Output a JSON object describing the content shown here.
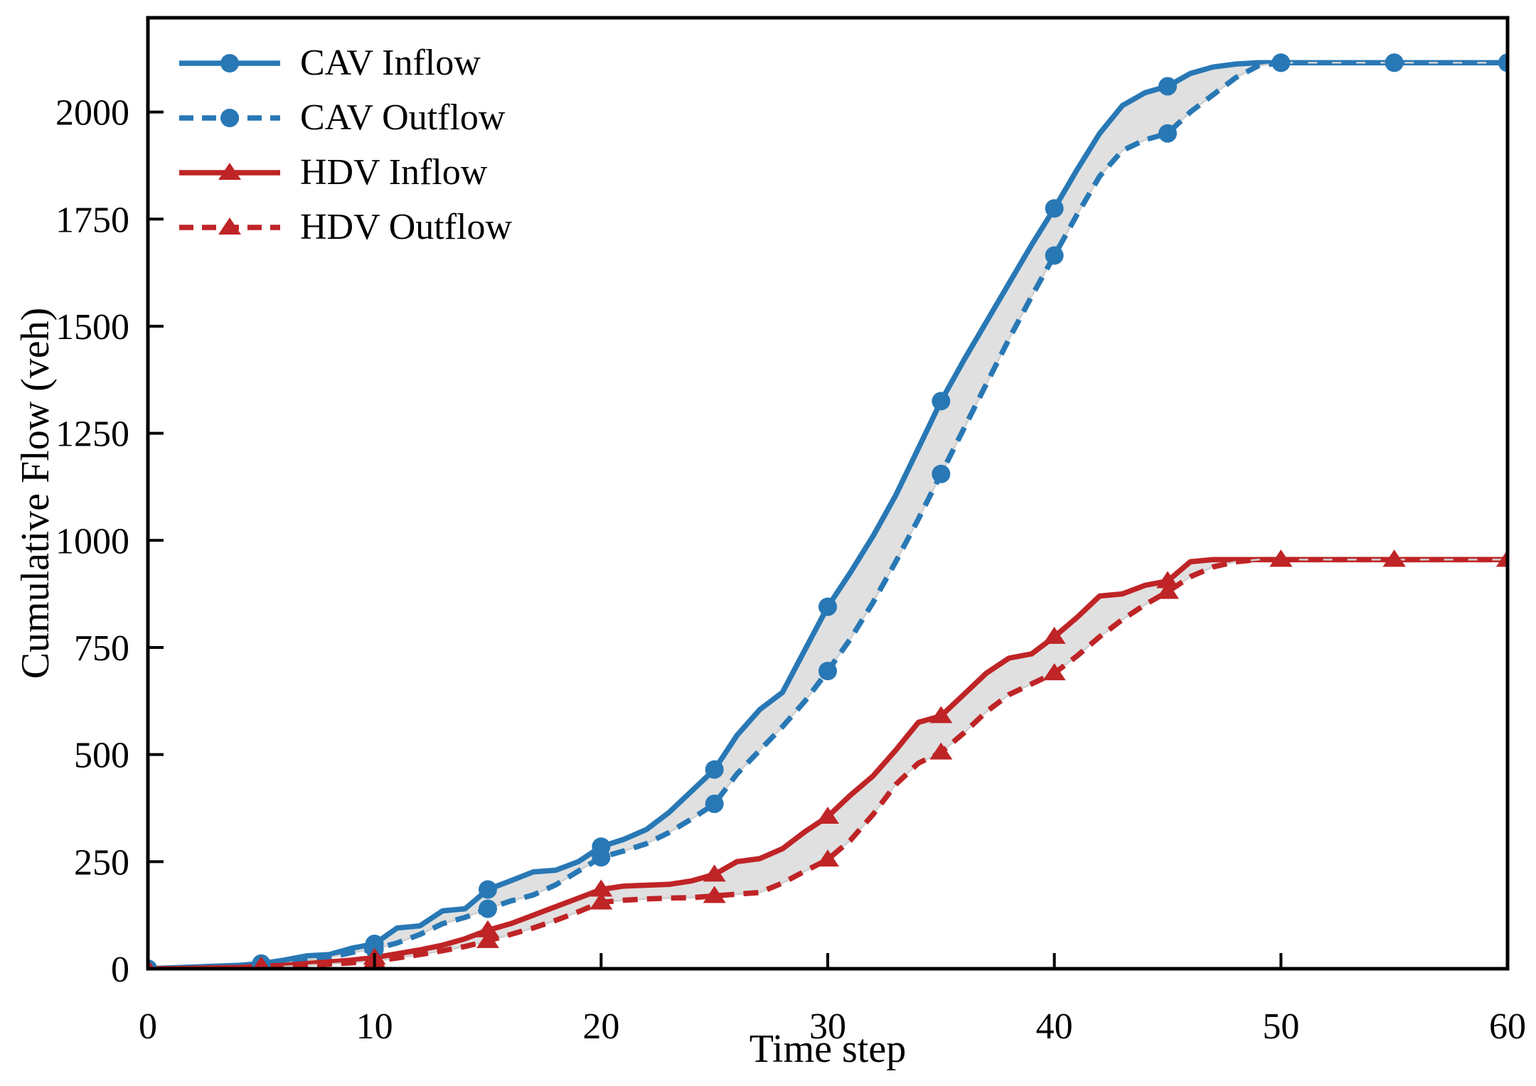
{
  "chart_data": {
    "type": "line",
    "title": "",
    "xlabel": "Time step",
    "ylabel": "Cumulative Flow (veh)",
    "x_range": [
      0,
      60
    ],
    "y_range": [
      0,
      2220
    ],
    "x_ticks": [
      0,
      10,
      20,
      30,
      40,
      50,
      60
    ],
    "y_ticks": [
      0,
      250,
      500,
      750,
      1000,
      1250,
      1500,
      1750,
      2000
    ],
    "grid": false,
    "legend_position": "upper-left",
    "band_color": "#e0e0e0",
    "band_edge_color": "#cfcfcf",
    "axis_color": "#000000",
    "marker_every": 5,
    "x_step": 1,
    "bands": [
      [
        0,
        1
      ],
      [
        2,
        3
      ]
    ],
    "series": [
      {
        "name": "CAV Inflow",
        "color": "#2878b5",
        "style": "solid",
        "marker": "circle",
        "values": [
          0,
          2,
          4,
          6,
          8,
          12,
          20,
          30,
          33,
          48,
          58,
          95,
          100,
          135,
          140,
          185,
          205,
          226,
          230,
          250,
          285,
          302,
          325,
          365,
          415,
          465,
          545,
          605,
          645,
          745,
          845,
          925,
          1010,
          1105,
          1215,
          1325,
          1420,
          1510,
          1600,
          1690,
          1775,
          1865,
          1950,
          2015,
          2045,
          2060,
          2090,
          2105,
          2112,
          2115,
          2115,
          2115,
          2115,
          2115,
          2115,
          2115,
          2115,
          2115,
          2115,
          2115,
          2115
        ]
      },
      {
        "name": "CAV Outflow",
        "color": "#2878b5",
        "style": "dashed",
        "marker": "circle",
        "values": [
          0,
          1,
          2,
          4,
          6,
          8,
          12,
          20,
          26,
          38,
          46,
          60,
          80,
          105,
          120,
          140,
          158,
          172,
          196,
          228,
          260,
          275,
          292,
          318,
          350,
          385,
          455,
          510,
          565,
          625,
          695,
          770,
          855,
          950,
          1050,
          1155,
          1260,
          1365,
          1470,
          1570,
          1665,
          1760,
          1850,
          1910,
          1935,
          1950,
          2000,
          2040,
          2080,
          2108,
          2115,
          2115,
          2115,
          2115,
          2115,
          2115,
          2115,
          2115,
          2115,
          2115,
          2115
        ]
      },
      {
        "name": "HDV Inflow",
        "color": "#bf2426",
        "style": "solid",
        "marker": "triangle",
        "values": [
          0,
          0,
          1,
          2,
          3,
          6,
          8,
          12,
          16,
          20,
          26,
          35,
          44,
          55,
          70,
          90,
          105,
          125,
          145,
          165,
          185,
          193,
          195,
          197,
          205,
          220,
          250,
          257,
          280,
          320,
          355,
          405,
          450,
          510,
          575,
          590,
          640,
          690,
          725,
          735,
          775,
          820,
          870,
          875,
          895,
          905,
          950,
          955,
          955,
          955,
          955,
          955,
          955,
          955,
          955,
          955,
          955,
          955,
          955,
          955,
          955
        ]
      },
      {
        "name": "HDV Outflow",
        "color": "#bf2426",
        "style": "dashed",
        "marker": "triangle",
        "values": [
          0,
          0,
          0,
          1,
          1,
          2,
          5,
          8,
          11,
          14,
          18,
          25,
          33,
          42,
          52,
          65,
          80,
          95,
          113,
          133,
          155,
          160,
          163,
          165,
          166,
          170,
          174,
          178,
          200,
          228,
          255,
          300,
          360,
          430,
          480,
          505,
          550,
          600,
          640,
          665,
          690,
          730,
          775,
          815,
          850,
          880,
          915,
          938,
          950,
          955,
          955,
          955,
          955,
          955,
          955,
          955,
          955,
          955,
          955,
          955,
          955
        ]
      }
    ]
  }
}
